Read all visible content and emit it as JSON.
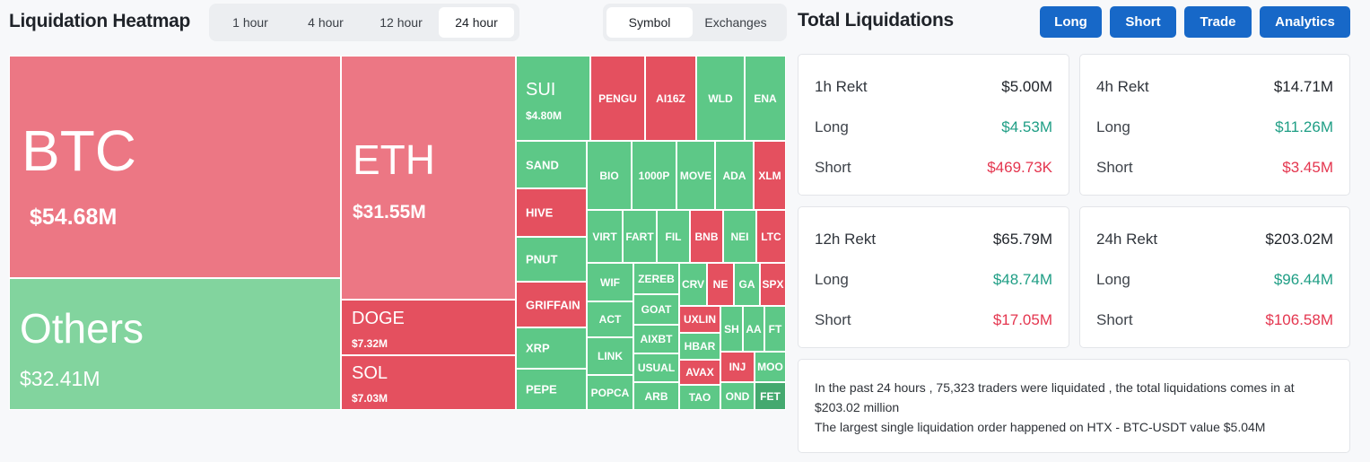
{
  "header": {
    "title": "Liquidation Heatmap",
    "ranges": [
      "1 hour",
      "4 hour",
      "12 hour",
      "24 hour"
    ],
    "active_range": "24 hour",
    "views": [
      "Symbol",
      "Exchanges"
    ],
    "active_view": "Symbol"
  },
  "heatmap": {
    "tiles": [
      {
        "sym": "BTC",
        "val": "$54.68M"
      },
      {
        "sym": "Others",
        "val": "$32.41M"
      },
      {
        "sym": "ETH",
        "val": "$31.55M"
      },
      {
        "sym": "DOGE",
        "val": "$7.32M"
      },
      {
        "sym": "SOL",
        "val": "$7.03M"
      },
      {
        "sym": "SUI",
        "val": "$4.80M"
      },
      {
        "sym": "PENGU"
      },
      {
        "sym": "AI16Z"
      },
      {
        "sym": "WLD"
      },
      {
        "sym": "ENA"
      },
      {
        "sym": "SAND"
      },
      {
        "sym": "BIO"
      },
      {
        "sym": "1000P"
      },
      {
        "sym": "MOVE"
      },
      {
        "sym": "ADA"
      },
      {
        "sym": "XLM"
      },
      {
        "sym": "HIVE"
      },
      {
        "sym": "VIRT"
      },
      {
        "sym": "FART"
      },
      {
        "sym": "FIL"
      },
      {
        "sym": "BNB"
      },
      {
        "sym": "NEI"
      },
      {
        "sym": "LTC"
      },
      {
        "sym": "PNUT"
      },
      {
        "sym": "WIF"
      },
      {
        "sym": "ZEREB"
      },
      {
        "sym": "CRV"
      },
      {
        "sym": "NE"
      },
      {
        "sym": "GA"
      },
      {
        "sym": "SPX"
      },
      {
        "sym": "GRIFFAIN"
      },
      {
        "sym": "ACT"
      },
      {
        "sym": "GOAT"
      },
      {
        "sym": "UXLIN"
      },
      {
        "sym": "SH"
      },
      {
        "sym": "AA"
      },
      {
        "sym": "FT"
      },
      {
        "sym": "XRP"
      },
      {
        "sym": "AIXBT"
      },
      {
        "sym": "HBAR"
      },
      {
        "sym": "LINK"
      },
      {
        "sym": "USUAL"
      },
      {
        "sym": "AVAX"
      },
      {
        "sym": "INJ"
      },
      {
        "sym": "MOO"
      },
      {
        "sym": "PEPE"
      },
      {
        "sym": "POPCA"
      },
      {
        "sym": "ARB"
      },
      {
        "sym": "TAO"
      },
      {
        "sym": "OND"
      },
      {
        "sym": "FET"
      }
    ],
    "colors": {
      "long": "#5dc887",
      "short": "#e4505f"
    }
  },
  "totals": {
    "title": "Total Liquidations",
    "buttons": [
      "Long",
      "Short",
      "Trade",
      "Analytics"
    ],
    "accent": "#1768c8",
    "cards": [
      {
        "head": "1h Rekt",
        "total": "$5.00M",
        "long_label": "Long",
        "long": "$4.53M",
        "short_label": "Short",
        "short": "$469.73K"
      },
      {
        "head": "4h Rekt",
        "total": "$14.71M",
        "long_label": "Long",
        "long": "$11.26M",
        "short_label": "Short",
        "short": "$3.45M"
      },
      {
        "head": "12h Rekt",
        "total": "$65.79M",
        "long_label": "Long",
        "long": "$48.74M",
        "short_label": "Short",
        "short": "$17.05M"
      },
      {
        "head": "24h Rekt",
        "total": "$203.02M",
        "long_label": "Long",
        "long": "$96.44M",
        "short_label": "Short",
        "short": "$106.58M"
      }
    ],
    "summary_line1": "In the past 24 hours , 75,323 traders were liquidated , the total liquidations comes in at $203.02 million",
    "summary_line2": "The largest single liquidation order happened on HTX - BTC-USDT value $5.04M"
  }
}
